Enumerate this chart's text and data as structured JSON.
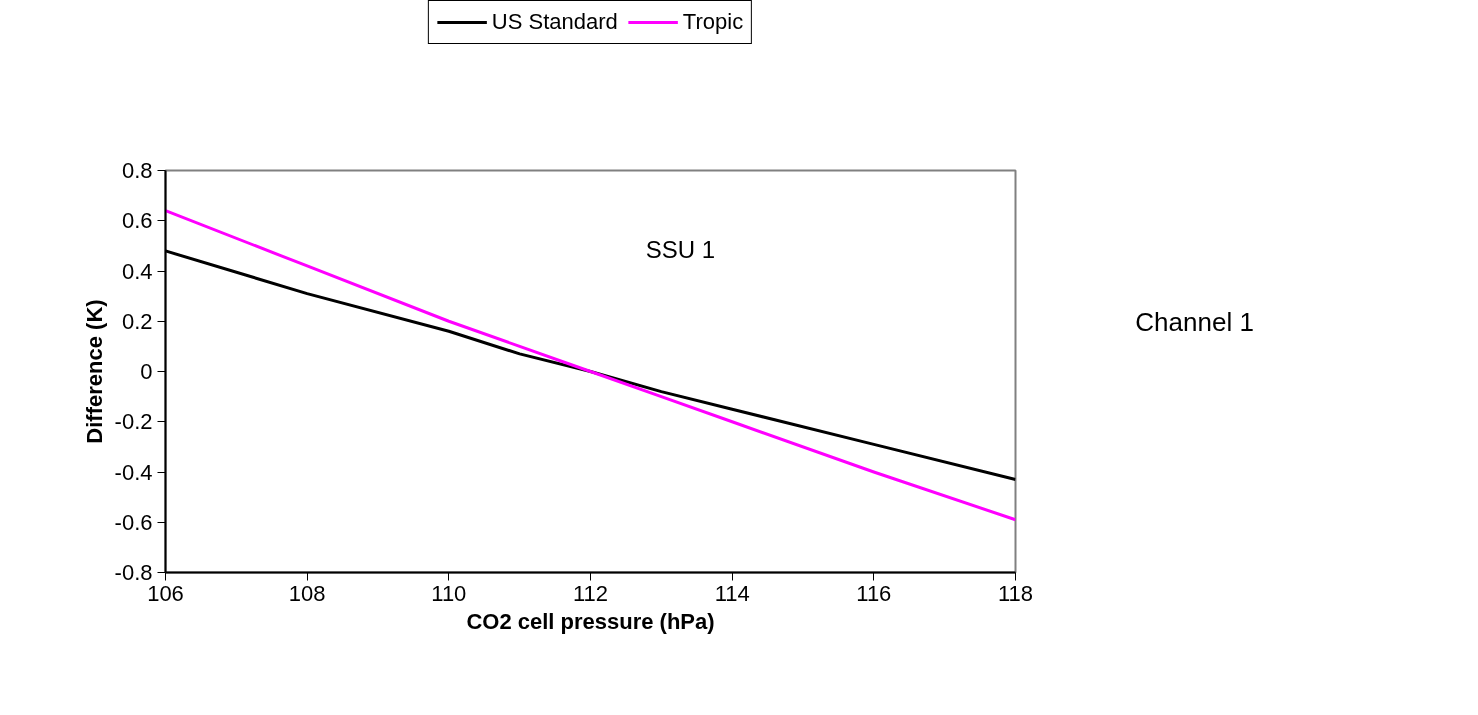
{
  "chart_data": {
    "type": "line",
    "xlabel": "CO2 cell pressure (hPa)",
    "ylabel": "Difference (K)",
    "annotations": [
      "SSU 1",
      "Channel 1"
    ],
    "x": [
      106,
      108,
      110,
      111,
      112,
      113,
      114,
      116,
      118
    ],
    "series": [
      {
        "name": "US Standard",
        "color": "#000000",
        "values": [
          0.48,
          0.31,
          0.16,
          0.07,
          0,
          -0.08,
          -0.15,
          -0.29,
          -0.43
        ]
      },
      {
        "name": "Tropic",
        "color": "#ff00ff",
        "values": [
          0.64,
          0.42,
          0.2,
          0.1,
          0,
          -0.1,
          -0.2,
          -0.4,
          -0.59
        ]
      }
    ],
    "xlim": [
      106,
      118
    ],
    "xticks": [
      106,
      108,
      110,
      112,
      114,
      116,
      118
    ],
    "ylim": [
      -0.8,
      0.8
    ],
    "yticks": [
      {
        "value": -0.8,
        "label": "-0.8"
      },
      {
        "value": -0.6,
        "label": "-0.6"
      },
      {
        "value": -0.4,
        "label": "-0.4"
      },
      {
        "value": -0.2,
        "label": "-0.2"
      },
      0,
      {
        "value": 0.2,
        "label": "0.2"
      },
      {
        "value": 0.4,
        "label": "0.4"
      },
      {
        "value": 0.6,
        "label": "0.6"
      },
      {
        "value": 0.8,
        "label": "0.8"
      }
    ],
    "grid": false,
    "legend": "top",
    "marker": "none",
    "line_style": "solid"
  }
}
